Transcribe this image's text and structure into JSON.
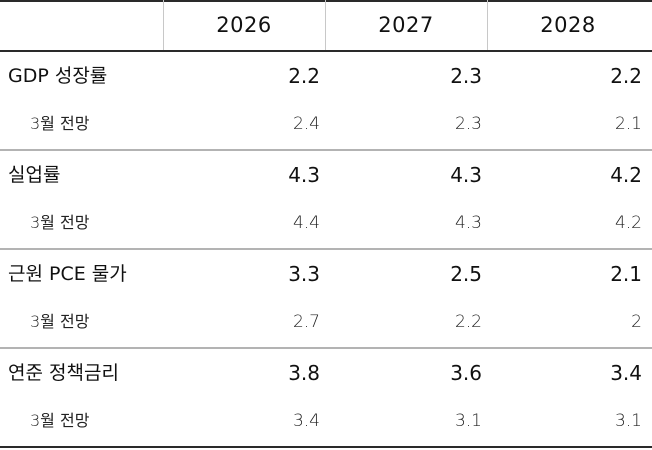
{
  "header": {
    "years": [
      "2026",
      "2027",
      "2028"
    ]
  },
  "rows": [
    {
      "label": "GDP 성장률",
      "values": [
        "2.2",
        "2.3",
        "2.2"
      ]
    },
    {
      "label": "3월 전망",
      "values": [
        "2.4",
        "2.3",
        "2.1"
      ]
    },
    {
      "label": "실업률",
      "values": [
        "4.3",
        "4.3",
        "4.2"
      ]
    },
    {
      "label": "3월 전망",
      "values": [
        "4.4",
        "4.3",
        "4.2"
      ]
    },
    {
      "label": "근원 PCE 물가",
      "values": [
        "3.3",
        "2.5",
        "2.1"
      ]
    },
    {
      "label": "3월 전망",
      "values": [
        "2.7",
        "2.2",
        "2"
      ]
    },
    {
      "label": "연준 정책금리",
      "values": [
        "3.8",
        "3.6",
        "3.4"
      ]
    },
    {
      "label": "3월 전망",
      "values": [
        "3.4",
        "3.1",
        "3.1"
      ]
    }
  ]
}
